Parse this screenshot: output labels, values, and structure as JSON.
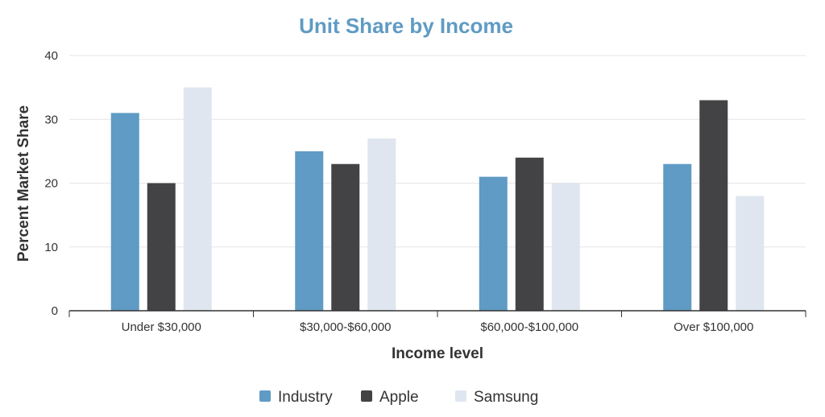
{
  "chart_data": {
    "type": "bar",
    "title": "Unit Share by Income",
    "xlabel": "Income level",
    "ylabel": "Percent Market Share",
    "categories": [
      "Under $30,000",
      "$30,000-$60,000",
      "$60,000-$100,000",
      "Over $100,000"
    ],
    "series": [
      {
        "name": "Industry",
        "values": [
          31,
          25,
          21,
          23
        ],
        "color": "#5f9bc4"
      },
      {
        "name": "Apple",
        "values": [
          20,
          23,
          24,
          33
        ],
        "color": "#434345"
      },
      {
        "name": "Samsung",
        "values": [
          35,
          27,
          20,
          18
        ],
        "color": "#dfe6ef"
      }
    ],
    "ylim": [
      0,
      40
    ],
    "yticks": [
      "0",
      "10",
      "20",
      "30",
      "40"
    ],
    "grid": true,
    "legend_position": "bottom-center",
    "title_color": "#5f9bc4",
    "axis_color": "#333333",
    "grid_color": "#e6e6e6"
  }
}
